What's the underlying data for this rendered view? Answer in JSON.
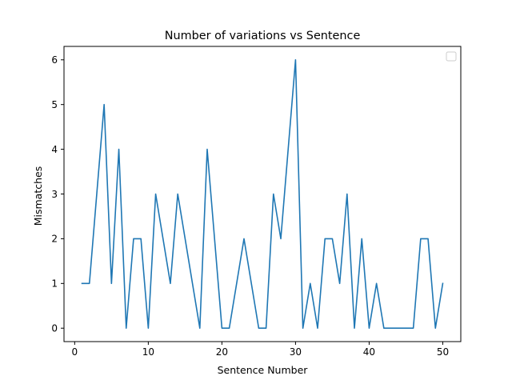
{
  "chart_data": {
    "type": "line",
    "title": "Number of variations vs Sentence",
    "xlabel": "Sentence Number",
    "ylabel": "Mismatches",
    "xlim": [
      -1.45,
      52.45
    ],
    "ylim": [
      -0.3,
      6.3
    ],
    "xticks": [
      0,
      10,
      20,
      30,
      40,
      50
    ],
    "yticks": [
      0,
      1,
      2,
      3,
      4,
      5,
      6
    ],
    "grid": false,
    "legend": "top-right (empty)",
    "series": [
      {
        "color": "#1f77b4",
        "x": [
          1,
          2,
          3,
          4,
          5,
          6,
          7,
          8,
          9,
          10,
          11,
          12,
          13,
          14,
          15,
          16,
          17,
          18,
          19,
          20,
          21,
          22,
          23,
          24,
          25,
          26,
          27,
          28,
          29,
          30,
          31,
          32,
          33,
          34,
          35,
          36,
          37,
          38,
          39,
          40,
          41,
          42,
          43,
          44,
          45,
          46,
          47,
          48,
          49,
          50
        ],
        "y": [
          1,
          1,
          3,
          5,
          1,
          4,
          0,
          2,
          2,
          0,
          3,
          2,
          1,
          3,
          2,
          1,
          0,
          4,
          2,
          0,
          0,
          1,
          2,
          1,
          0,
          0,
          3,
          2,
          4,
          6,
          0,
          1,
          0,
          2,
          2,
          1,
          3,
          0,
          2,
          0,
          1,
          0,
          0,
          0,
          0,
          0,
          2,
          2,
          0,
          1
        ]
      }
    ]
  }
}
